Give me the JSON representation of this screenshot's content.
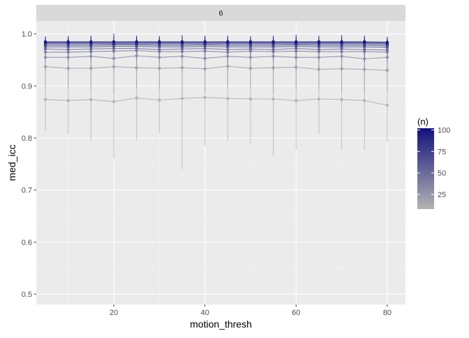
{
  "colors": {
    "panel_bg": "#ebebeb",
    "strip_bg": "#d9d9d9",
    "grid_major": "#ffffff",
    "grid_minor": "#f5f5f5",
    "low": "#b3b3b3",
    "high": "#12127d"
  },
  "chart_data": {
    "type": "line",
    "facet_label": "6",
    "xlabel": "motion_thresh",
    "ylabel": "med_icc",
    "xlim": [
      3,
      84
    ],
    "ylim": [
      0.48,
      1.025
    ],
    "x_ticks": [
      20,
      40,
      60,
      80
    ],
    "x_tick_labels": [
      "20",
      "40",
      "60",
      "80"
    ],
    "y_ticks": [
      0.5,
      0.6,
      0.7,
      0.8,
      0.9,
      1.0
    ],
    "y_tick_labels": [
      "0.5",
      "0.6",
      "0.7",
      "0.8",
      "0.9",
      "1.0"
    ],
    "grid": true,
    "legend": {
      "title": "(n)",
      "position": "right",
      "type": "colorbar",
      "range": [
        8,
        102
      ],
      "breaks": [
        25,
        50,
        75,
        100
      ],
      "break_labels": [
        "25",
        "50",
        "75",
        "100"
      ]
    },
    "x": [
      5,
      10,
      15,
      20,
      25,
      30,
      35,
      40,
      45,
      50,
      55,
      60,
      65,
      70,
      75,
      80
    ],
    "series": [
      {
        "n": 10,
        "values": [
          0.874,
          0.872,
          0.874,
          0.87,
          0.877,
          0.873,
          0.876,
          0.878,
          0.876,
          0.875,
          0.875,
          0.872,
          0.875,
          0.874,
          0.872,
          0.863
        ],
        "error": [
          [
            0.815,
            0.935
          ],
          [
            0.808,
            0.932
          ],
          [
            0.795,
            0.94
          ],
          [
            0.76,
            0.93
          ],
          [
            0.795,
            0.935
          ],
          [
            0.81,
            0.935
          ],
          [
            0.74,
            0.945
          ],
          [
            0.785,
            0.943
          ],
          [
            0.795,
            0.942
          ],
          [
            0.79,
            0.94
          ],
          [
            0.765,
            0.945
          ],
          [
            0.777,
            0.94
          ],
          [
            0.808,
            0.94
          ],
          [
            0.777,
            0.938
          ],
          [
            0.778,
            0.937
          ],
          [
            0.793,
            0.935
          ]
        ]
      },
      {
        "n": 20,
        "values": [
          0.937,
          0.934,
          0.934,
          0.937,
          0.935,
          0.934,
          0.935,
          0.933,
          0.938,
          0.934,
          0.935,
          0.936,
          0.932,
          0.933,
          0.932,
          0.93
        ],
        "error": [
          [
            0.898,
            0.965
          ],
          [
            0.895,
            0.963
          ],
          [
            0.893,
            0.965
          ],
          [
            0.885,
            0.968
          ],
          [
            0.895,
            0.965
          ],
          [
            0.893,
            0.964
          ],
          [
            0.88,
            0.975
          ],
          [
            0.89,
            0.965
          ],
          [
            0.898,
            0.966
          ],
          [
            0.893,
            0.965
          ],
          [
            0.885,
            0.966
          ],
          [
            0.892,
            0.966
          ],
          [
            0.893,
            0.963
          ],
          [
            0.89,
            0.965
          ],
          [
            0.888,
            0.964
          ],
          [
            0.89,
            0.961
          ]
        ]
      },
      {
        "n": 30,
        "values": [
          0.955,
          0.955,
          0.957,
          0.953,
          0.958,
          0.955,
          0.957,
          0.953,
          0.957,
          0.955,
          0.957,
          0.955,
          0.955,
          0.957,
          0.952,
          0.955
        ],
        "error": [
          [
            0.93,
            0.975
          ],
          [
            0.93,
            0.974
          ],
          [
            0.932,
            0.976
          ],
          [
            0.925,
            0.976
          ],
          [
            0.932,
            0.977
          ],
          [
            0.93,
            0.975
          ],
          [
            0.925,
            0.98
          ],
          [
            0.928,
            0.975
          ],
          [
            0.932,
            0.977
          ],
          [
            0.93,
            0.975
          ],
          [
            0.928,
            0.977
          ],
          [
            0.93,
            0.976
          ],
          [
            0.93,
            0.975
          ],
          [
            0.932,
            0.977
          ],
          [
            0.925,
            0.974
          ],
          [
            0.93,
            0.975
          ]
        ]
      },
      {
        "n": 40,
        "values": [
          0.965,
          0.965,
          0.966,
          0.967,
          0.968,
          0.966,
          0.966,
          0.967,
          0.965,
          0.967,
          0.966,
          0.967,
          0.966,
          0.966,
          0.966,
          0.965
        ],
        "error": [
          [
            0.945,
            0.982
          ],
          [
            0.946,
            0.982
          ],
          [
            0.946,
            0.983
          ],
          [
            0.946,
            0.984
          ],
          [
            0.948,
            0.984
          ],
          [
            0.946,
            0.983
          ],
          [
            0.945,
            0.985
          ],
          [
            0.947,
            0.983
          ],
          [
            0.945,
            0.982
          ],
          [
            0.947,
            0.983
          ],
          [
            0.946,
            0.983
          ],
          [
            0.947,
            0.984
          ],
          [
            0.946,
            0.983
          ],
          [
            0.946,
            0.983
          ],
          [
            0.946,
            0.983
          ],
          [
            0.945,
            0.982
          ]
        ]
      },
      {
        "n": 50,
        "values": [
          0.971,
          0.97,
          0.971,
          0.972,
          0.972,
          0.97,
          0.971,
          0.972,
          0.97,
          0.971,
          0.97,
          0.972,
          0.97,
          0.971,
          0.97,
          0.969
        ],
        "error": [
          [
            0.955,
            0.986
          ],
          [
            0.955,
            0.985
          ],
          [
            0.956,
            0.986
          ],
          [
            0.956,
            0.987
          ],
          [
            0.956,
            0.987
          ],
          [
            0.955,
            0.985
          ],
          [
            0.955,
            0.987
          ],
          [
            0.956,
            0.987
          ],
          [
            0.954,
            0.986
          ],
          [
            0.955,
            0.986
          ],
          [
            0.954,
            0.986
          ],
          [
            0.956,
            0.987
          ],
          [
            0.954,
            0.986
          ],
          [
            0.955,
            0.986
          ],
          [
            0.954,
            0.986
          ],
          [
            0.953,
            0.985
          ]
        ]
      },
      {
        "n": 60,
        "values": [
          0.975,
          0.975,
          0.975,
          0.976,
          0.976,
          0.975,
          0.975,
          0.976,
          0.975,
          0.975,
          0.975,
          0.976,
          0.975,
          0.975,
          0.975,
          0.974
        ],
        "error": [
          [
            0.962,
            0.988
          ],
          [
            0.962,
            0.988
          ],
          [
            0.962,
            0.989
          ],
          [
            0.963,
            0.989
          ],
          [
            0.963,
            0.989
          ],
          [
            0.962,
            0.988
          ],
          [
            0.962,
            0.989
          ],
          [
            0.963,
            0.989
          ],
          [
            0.962,
            0.988
          ],
          [
            0.962,
            0.988
          ],
          [
            0.962,
            0.989
          ],
          [
            0.963,
            0.989
          ],
          [
            0.962,
            0.988
          ],
          [
            0.962,
            0.988
          ],
          [
            0.962,
            0.988
          ],
          [
            0.961,
            0.987
          ]
        ]
      },
      {
        "n": 70,
        "values": [
          0.978,
          0.978,
          0.978,
          0.979,
          0.979,
          0.978,
          0.978,
          0.979,
          0.978,
          0.978,
          0.978,
          0.979,
          0.978,
          0.978,
          0.978,
          0.977
        ],
        "error": [
          [
            0.967,
            0.99
          ],
          [
            0.967,
            0.99
          ],
          [
            0.967,
            0.99
          ],
          [
            0.968,
            0.991
          ],
          [
            0.968,
            0.991
          ],
          [
            0.967,
            0.99
          ],
          [
            0.967,
            0.991
          ],
          [
            0.968,
            0.991
          ],
          [
            0.967,
            0.99
          ],
          [
            0.967,
            0.99
          ],
          [
            0.967,
            0.99
          ],
          [
            0.968,
            0.991
          ],
          [
            0.967,
            0.99
          ],
          [
            0.967,
            0.99
          ],
          [
            0.967,
            0.99
          ],
          [
            0.966,
            0.989
          ]
        ]
      },
      {
        "n": 80,
        "values": [
          0.981,
          0.981,
          0.981,
          0.981,
          0.981,
          0.981,
          0.981,
          0.981,
          0.981,
          0.981,
          0.981,
          0.981,
          0.981,
          0.981,
          0.981,
          0.98
        ],
        "error": [
          [
            0.971,
            0.992
          ],
          [
            0.971,
            0.992
          ],
          [
            0.971,
            0.993
          ],
          [
            0.971,
            0.993
          ],
          [
            0.971,
            0.993
          ],
          [
            0.971,
            0.992
          ],
          [
            0.971,
            0.994
          ],
          [
            0.971,
            0.993
          ],
          [
            0.971,
            0.992
          ],
          [
            0.971,
            0.992
          ],
          [
            0.971,
            0.993
          ],
          [
            0.971,
            0.993
          ],
          [
            0.971,
            0.992
          ],
          [
            0.971,
            0.992
          ],
          [
            0.971,
            0.992
          ],
          [
            0.97,
            0.991
          ]
        ]
      },
      {
        "n": 90,
        "values": [
          0.983,
          0.983,
          0.983,
          0.983,
          0.983,
          0.983,
          0.983,
          0.983,
          0.983,
          0.983,
          0.983,
          0.983,
          0.983,
          0.983,
          0.983,
          0.982
        ],
        "error": [
          [
            0.974,
            0.994
          ],
          [
            0.974,
            0.994
          ],
          [
            0.974,
            0.995
          ],
          [
            0.974,
            0.996
          ],
          [
            0.974,
            0.995
          ],
          [
            0.974,
            0.994
          ],
          [
            0.974,
            0.996
          ],
          [
            0.974,
            0.995
          ],
          [
            0.974,
            0.995
          ],
          [
            0.974,
            0.994
          ],
          [
            0.974,
            0.995
          ],
          [
            0.974,
            0.996
          ],
          [
            0.974,
            0.995
          ],
          [
            0.974,
            0.995
          ],
          [
            0.974,
            0.995
          ],
          [
            0.973,
            0.993
          ]
        ]
      },
      {
        "n": 100,
        "values": [
          0.985,
          0.985,
          0.985,
          0.985,
          0.985,
          0.985,
          0.985,
          0.985,
          0.985,
          0.985,
          0.985,
          0.985,
          0.985,
          0.985,
          0.985,
          0.984
        ],
        "error": [
          [
            0.977,
            0.995
          ],
          [
            0.977,
            0.996
          ],
          [
            0.977,
            0.997
          ],
          [
            0.977,
            1.001
          ],
          [
            0.977,
            0.997
          ],
          [
            0.977,
            0.996
          ],
          [
            0.977,
            0.998
          ],
          [
            0.977,
            0.997
          ],
          [
            0.977,
            0.997
          ],
          [
            0.977,
            0.996
          ],
          [
            0.977,
            0.997
          ],
          [
            0.977,
            0.999
          ],
          [
            0.977,
            0.997
          ],
          [
            0.977,
            0.998
          ],
          [
            0.977,
            0.997
          ],
          [
            0.976,
            0.995
          ]
        ]
      }
    ]
  }
}
